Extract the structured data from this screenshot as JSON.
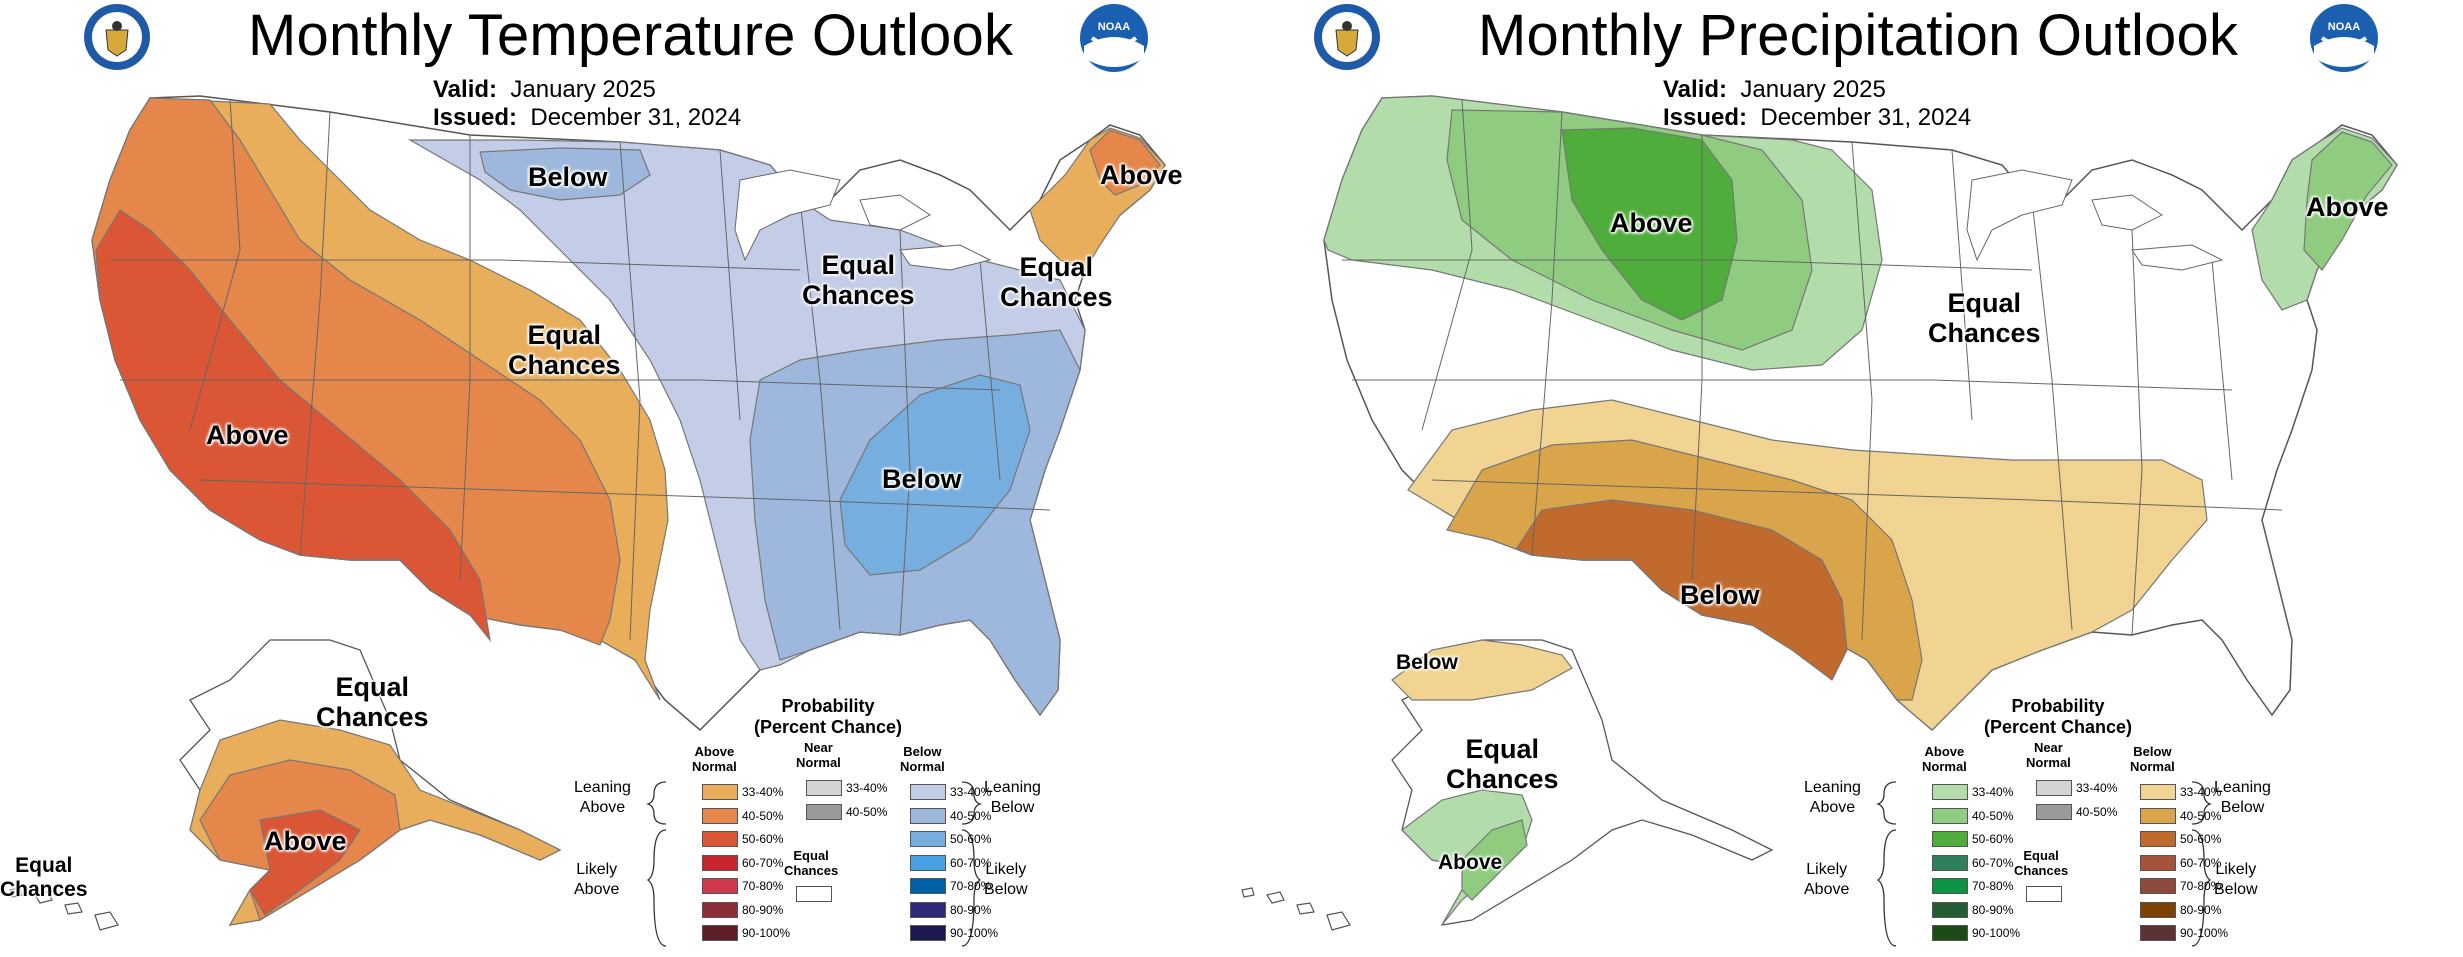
{
  "temperature": {
    "title": "Monthly Temperature Outlook",
    "valid_label": "Valid:",
    "valid_value": "January 2025",
    "issued_label": "Issued:",
    "issued_value": "December 31, 2024",
    "labels": {
      "below_north": "Below",
      "above_ne": "Above",
      "ec_greatlakes": "Equal\nChances",
      "ec_newengland": "Equal\nChances",
      "ec_plains": "Equal\nChances",
      "above_west": "Above",
      "below_southeast": "Below",
      "ec_alaska": "Equal\nChances",
      "above_alaska": "Above",
      "ec_hawaii": "Equal\nChances"
    }
  },
  "precipitation": {
    "title": "Monthly Precipitation Outlook",
    "valid_label": "Valid:",
    "valid_value": "January 2025",
    "issued_label": "Issued:",
    "issued_value": "December 31, 2024",
    "labels": {
      "above_north": "Above",
      "above_ne": "Above",
      "ec_central": "Equal\nChances",
      "below_south": "Below",
      "below_alaska": "Below",
      "ec_alaska": "Equal\nChances",
      "above_alaska": "Above"
    }
  },
  "legend": {
    "title": "Probability\n(Percent Chance)",
    "above_head": "Above\nNormal",
    "near_head": "Near\nNormal",
    "below_head": "Below\nNormal",
    "leaning_above": "Leaning\nAbove",
    "likely_above": "Likely\nAbove",
    "leaning_below": "Leaning\nBelow",
    "likely_below": "Likely\nBelow",
    "equal_chances": "Equal\nChances",
    "ranges": [
      "33-40%",
      "40-50%",
      "50-60%",
      "60-70%",
      "70-80%",
      "80-90%",
      "90-100%"
    ],
    "near_ranges": [
      "33-40%",
      "40-50%"
    ],
    "temp_above_colors": [
      "#e8ae5c",
      "#e5874a",
      "#da5634",
      "#c8262f",
      "#d0384e",
      "#8e2d3a",
      "#5e1e27"
    ],
    "temp_below_colors": [
      "#c3cde8",
      "#9db8dc",
      "#76aedf",
      "#47a0df",
      "#0061a8",
      "#2d2a7a",
      "#1d1a52"
    ],
    "precip_above_colors": [
      "#b2dcaa",
      "#8fcc80",
      "#4fae3b",
      "#2f7f5b",
      "#0c9444",
      "#245c33",
      "#1e4a17"
    ],
    "precip_below_colors": [
      "#f1d491",
      "#d9a44a",
      "#c06a2e",
      "#a4543b",
      "#8e4a3d",
      "#7c4203",
      "#5b3332"
    ],
    "near_colors": [
      "#d4d4d4",
      "#9a9a9a"
    ],
    "ec_color": "#ffffff"
  }
}
